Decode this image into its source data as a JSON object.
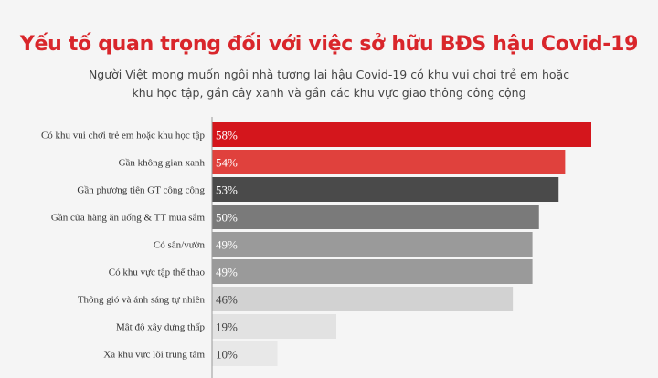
{
  "title": "Yếu tố quan trọng đối với việc sở hữu BĐS hậu Covid-19",
  "subtitle": "Người Việt mong muốn ngôi nhà tương lai hậu Covid-19 có khu vui chơi trẻ em hoặc khu học tập, gần cây xanh và gần các khu vực giao thông công cộng",
  "chart_data": {
    "type": "bar",
    "orientation": "horizontal",
    "categories": [
      "Có khu vui chơi trẻ em hoặc khu học tập",
      "Gần không gian xanh",
      "Gần phương tiện GT công cộng",
      "Gần cửa hàng ăn uống & TT mua sắm",
      "Có sân/vườn",
      "Có khu vực tập thể thao",
      "Thông gió và ánh sáng tự nhiên",
      "Mật độ xây dựng thấp",
      "Xa khu vực lõi trung tâm"
    ],
    "values": [
      58,
      54,
      53,
      50,
      49,
      49,
      46,
      19,
      10
    ],
    "value_labels": [
      "58%",
      "54%",
      "53%",
      "50%",
      "49%",
      "49%",
      "46%",
      "19%",
      "10%"
    ],
    "colors": [
      "#d4161c",
      "#e0413d",
      "#4a4a4a",
      "#7a7a7a",
      "#9a9a9a",
      "#9a9a9a",
      "#d2d2d2",
      "#e2e2e2",
      "#e8e8e8"
    ],
    "label_colors": [
      "#ffffff",
      "#ffffff",
      "#ffffff",
      "#ffffff",
      "#ffffff",
      "#ffffff",
      "#444444",
      "#444444",
      "#444444"
    ],
    "xlim": [
      0,
      60
    ],
    "grid": false
  }
}
